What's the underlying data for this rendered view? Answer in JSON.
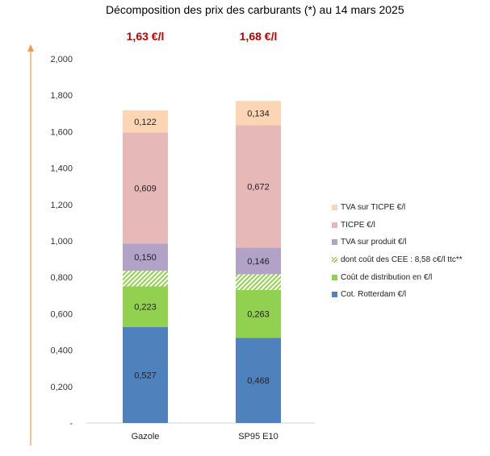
{
  "chart_data": {
    "type": "bar",
    "stacked": true,
    "title": "Décomposition des prix des carburants (*) au 14 mars 2025",
    "categories": [
      "Gazole",
      "SP95 E10"
    ],
    "totals": [
      "1,63 €/l",
      "1,68 €/l"
    ],
    "ylim": [
      0,
      2.0
    ],
    "yticks": [
      "-",
      "0,200",
      "0,400",
      "0,600",
      "0,800",
      "1,000",
      "1,200",
      "1,400",
      "1,600",
      "1,800",
      "2,000"
    ],
    "series": [
      {
        "name": "Cot. Rotterdam €/l",
        "color": "#4f81bd",
        "values": [
          0.527,
          0.468
        ],
        "labels": [
          "0,527",
          "0,468"
        ]
      },
      {
        "name": "Coût de distribution en €/l",
        "color": "#92d050",
        "values": [
          0.223,
          0.263
        ],
        "labels": [
          "0,223",
          "0,263"
        ]
      },
      {
        "name": "dont coût des CEE : 8,58 c€/l ttc**",
        "color": "#92d050",
        "pattern": "hatch",
        "values": [
          0.0858,
          0.0858
        ],
        "labels": [
          "",
          ""
        ]
      },
      {
        "name": "TVA sur produit €/l",
        "color": "#b3a2c7",
        "values": [
          0.15,
          0.146
        ],
        "labels": [
          "0,150",
          "0,146"
        ]
      },
      {
        "name": "TICPE €/l",
        "color": "#e6b9b8",
        "values": [
          0.609,
          0.672
        ],
        "labels": [
          "0,609",
          "0,672"
        ]
      },
      {
        "name": "TVA sur TICPE €/l",
        "color": "#fcd5b5",
        "values": [
          0.122,
          0.134
        ],
        "labels": [
          "0,122",
          "0,134"
        ]
      }
    ],
    "legend_order": [
      5,
      4,
      3,
      2,
      1,
      0
    ],
    "legend_position": "right",
    "grid": false,
    "axis_arrow_color": "#f79646"
  }
}
